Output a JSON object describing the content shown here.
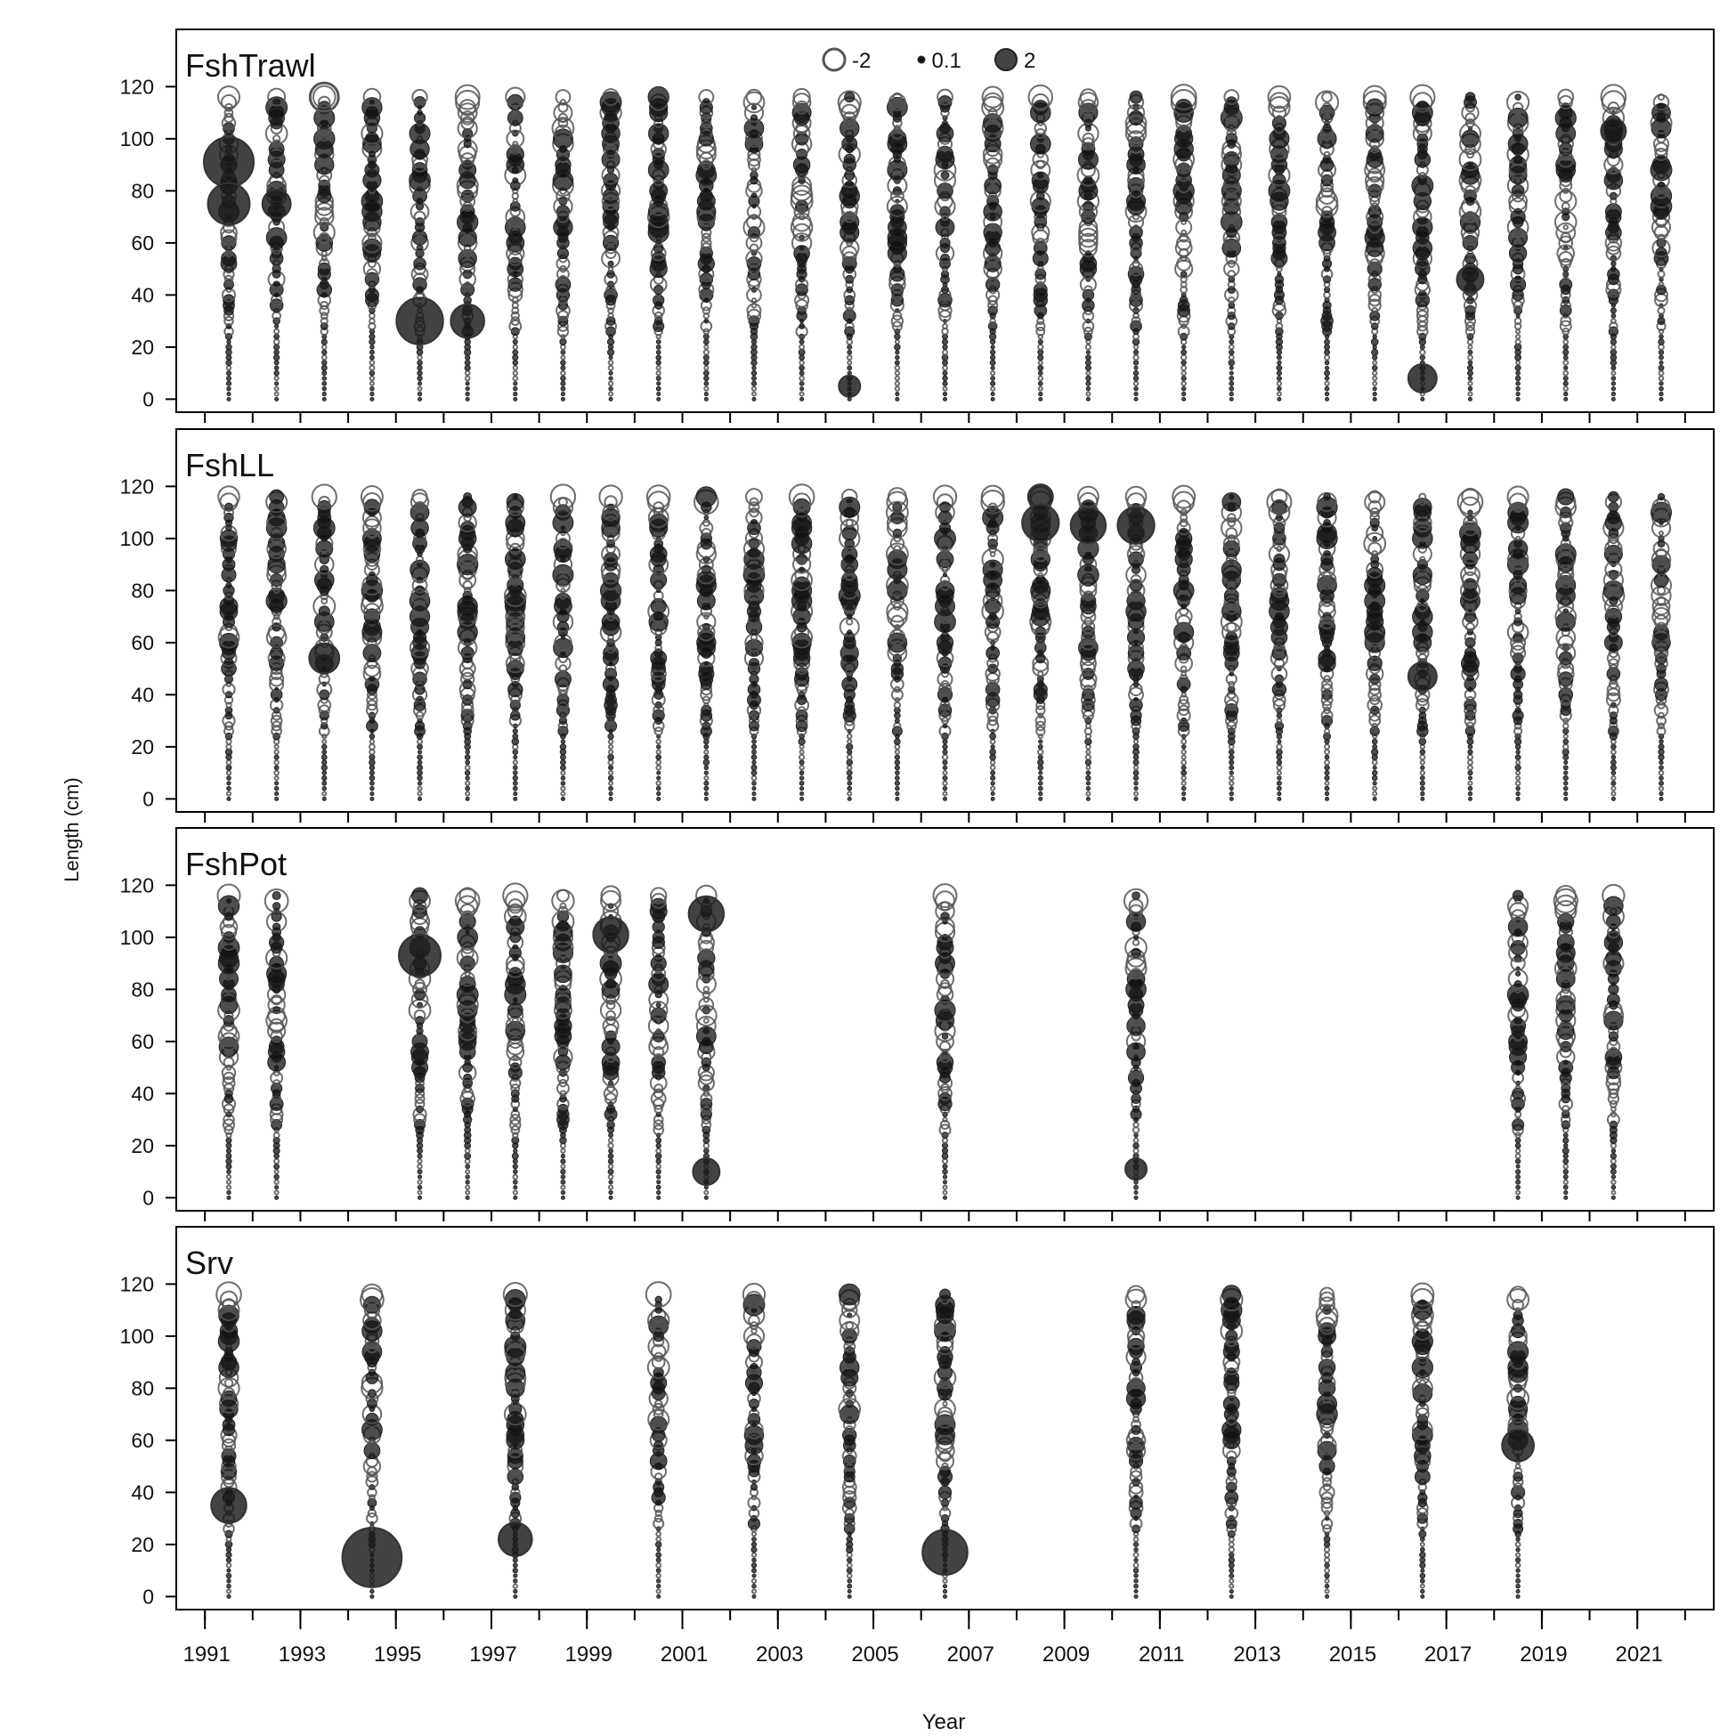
{
  "figure": {
    "xlabel": "Year",
    "ylabel": "Length (cm)"
  },
  "legend": [
    {
      "label": "-2",
      "value": -2,
      "style": "hollow"
    },
    {
      "label": "0.1",
      "value": 0.1,
      "style": "filled"
    },
    {
      "label": "2",
      "value": 2,
      "style": "filled"
    }
  ],
  "colors": {
    "positive_fill": "#111111",
    "negative_stroke": "#555555",
    "axis": "#000000"
  },
  "chart_data": {
    "type": "scatter",
    "subtype": "bubble residual plot",
    "x_axis": {
      "label": "Year",
      "range": [
        1990.4,
        2022.6
      ],
      "ticks_major": [
        1991,
        1993,
        1995,
        1997,
        1999,
        2001,
        2003,
        2005,
        2007,
        2009,
        2011,
        2013,
        2015,
        2017,
        2019,
        2021
      ],
      "ticks_minor_all_years": [
        1991,
        2022
      ]
    },
    "y_axis": {
      "label": "Length (cm)",
      "range": [
        -5,
        142
      ],
      "ticks": [
        0,
        20,
        40,
        60,
        80,
        100,
        120
      ]
    },
    "length_bins": {
      "min": 0,
      "max": 116,
      "step": 2
    },
    "panels": [
      {
        "name": "FshTrawl",
        "years": [
          1991,
          1992,
          1993,
          1994,
          1995,
          1996,
          1997,
          1998,
          1999,
          2000,
          2001,
          2002,
          2003,
          2004,
          2005,
          2006,
          2007,
          2008,
          2009,
          2010,
          2011,
          2012,
          2013,
          2014,
          2015,
          2016,
          2017,
          2018,
          2019,
          2020,
          2021
        ],
        "notable_residuals": [
          {
            "year": 1991,
            "length": 91,
            "residual": 2.6
          },
          {
            "year": 1991,
            "length": 75,
            "residual": 2.1
          },
          {
            "year": 1992,
            "length": 75,
            "residual": 1.3
          },
          {
            "year": 1993,
            "length": 116,
            "residual": -1.3
          },
          {
            "year": 1995,
            "length": 30,
            "residual": 2.4
          },
          {
            "year": 1996,
            "length": 30,
            "residual": 1.6
          },
          {
            "year": 2004,
            "length": 5,
            "residual": 0.9
          },
          {
            "year": 2016,
            "length": 8,
            "residual": 1.3
          },
          {
            "year": 2017,
            "length": 46,
            "residual": 1.2
          },
          {
            "year": 2020,
            "length": 103,
            "residual": 1.1
          }
        ]
      },
      {
        "name": "FshLL",
        "years": [
          1991,
          1992,
          1993,
          1994,
          1995,
          1996,
          1997,
          1998,
          1999,
          2000,
          2001,
          2002,
          2003,
          2004,
          2005,
          2006,
          2007,
          2008,
          2009,
          2010,
          2011,
          2012,
          2013,
          2014,
          2015,
          2016,
          2017,
          2018,
          2019,
          2020,
          2021
        ],
        "notable_residuals": [
          {
            "year": 1993,
            "length": 54,
            "residual": 1.4
          },
          {
            "year": 2008,
            "length": 116,
            "residual": 1.1
          },
          {
            "year": 2008,
            "length": 106,
            "residual": 1.8
          },
          {
            "year": 2009,
            "length": 105,
            "residual": 1.7
          },
          {
            "year": 2010,
            "length": 105,
            "residual": 1.8
          },
          {
            "year": 2016,
            "length": 47,
            "residual": 1.3
          }
        ]
      },
      {
        "name": "FshPot",
        "years": [
          1991,
          1992,
          1995,
          1996,
          1997,
          1998,
          1999,
          2000,
          2001,
          2006,
          2010,
          2018,
          2019,
          2020
        ],
        "notable_residuals": [
          {
            "year": 1995,
            "length": 93,
            "residual": 2.1
          },
          {
            "year": 1999,
            "length": 101,
            "residual": 1.7
          },
          {
            "year": 2001,
            "length": 109,
            "residual": 1.7
          },
          {
            "year": 2001,
            "length": 10,
            "residual": 1.2
          },
          {
            "year": 2010,
            "length": 11,
            "residual": 0.9
          }
        ]
      },
      {
        "name": "Srv",
        "years": [
          1991,
          1994,
          1997,
          2000,
          2002,
          2004,
          2006,
          2010,
          2012,
          2014,
          2016,
          2018
        ],
        "notable_residuals": [
          {
            "year": 1991,
            "length": 35,
            "residual": 1.7
          },
          {
            "year": 1994,
            "length": 15,
            "residual": 3.2
          },
          {
            "year": 1997,
            "length": 22,
            "residual": 1.6
          },
          {
            "year": 2006,
            "length": 17,
            "residual": 2.3
          },
          {
            "year": 2018,
            "length": 58,
            "residual": 1.5
          }
        ]
      }
    ]
  }
}
